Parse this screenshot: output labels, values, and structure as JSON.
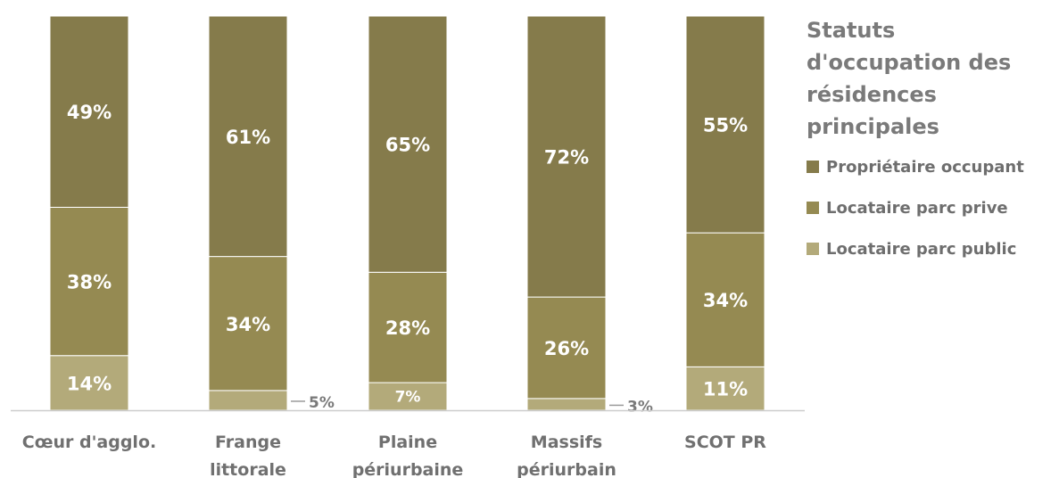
{
  "chart_data": {
    "type": "bar",
    "stacked": true,
    "categories": [
      [
        "Cœur d'agglo."
      ],
      [
        "Frange",
        "littorale"
      ],
      [
        "Plaine",
        "périurbaine"
      ],
      [
        "Massifs",
        "périurbain"
      ],
      [
        "SCOT PR"
      ]
    ],
    "series": [
      {
        "name": "Locataire parc public",
        "values": [
          14,
          5,
          7,
          3,
          11
        ],
        "labels": [
          "14%",
          "5%",
          "7%",
          "3%",
          "11%"
        ],
        "color": "#b3aa7a"
      },
      {
        "name": "Locataire parc prive",
        "values": [
          38,
          34,
          28,
          26,
          34
        ],
        "labels": [
          "38%",
          "34%",
          "28%",
          "26%",
          "34%"
        ],
        "color": "#958a52"
      },
      {
        "name": "Propriétaire occupant",
        "values": [
          49,
          61,
          65,
          72,
          55
        ],
        "labels": [
          "49%",
          "61%",
          "65%",
          "72%",
          "55%"
        ],
        "color": "#857b4b"
      }
    ],
    "legend_title": "Statuts d'occupation des résidences principales",
    "legend": [
      "Propriétaire occupant",
      "Locataire parc prive",
      "Locataire parc public"
    ],
    "legend_position": "right",
    "ylim": [
      0,
      100
    ],
    "grid": false
  }
}
